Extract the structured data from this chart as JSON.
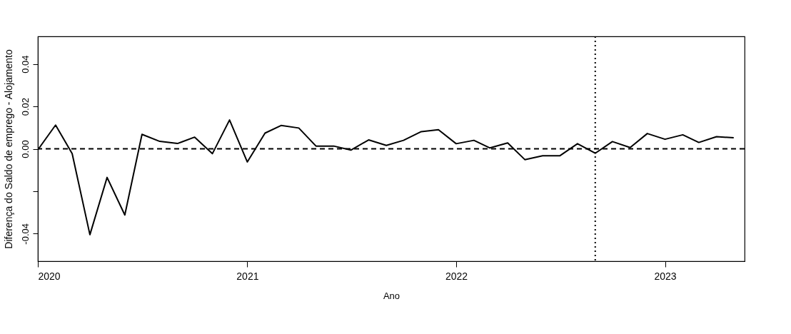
{
  "chart_data": {
    "type": "line",
    "xlabel": "Ano",
    "ylabel": "Diferença do Saldo de emprego - Alojamento",
    "x": [
      "2020-01",
      "2020-02",
      "2020-03",
      "2020-04",
      "2020-05",
      "2020-06",
      "2020-07",
      "2020-08",
      "2020-09",
      "2020-10",
      "2020-11",
      "2020-12",
      "2021-01",
      "2021-02",
      "2021-03",
      "2021-04",
      "2021-05",
      "2021-06",
      "2021-07",
      "2021-08",
      "2021-09",
      "2021-10",
      "2021-11",
      "2021-12",
      "2022-01",
      "2022-02",
      "2022-03",
      "2022-04",
      "2022-05",
      "2022-06",
      "2022-07",
      "2022-08",
      "2022-09",
      "2022-10",
      "2022-11",
      "2022-12",
      "2023-01",
      "2023-02",
      "2023-03",
      "2023-04",
      "2023-05"
    ],
    "series": [
      {
        "color": "#000000",
        "values": [
          -0.0005,
          0.0112,
          -0.0023,
          -0.0405,
          -0.0135,
          -0.0312,
          0.0068,
          0.0035,
          0.0025,
          0.0055,
          -0.0023,
          0.0136,
          -0.0062,
          0.0074,
          0.011,
          0.0098,
          0.0013,
          0.0013,
          -0.0006,
          0.0042,
          0.0016,
          0.004,
          0.0081,
          0.009,
          0.0024,
          0.004,
          0.0004,
          0.0028,
          -0.0051,
          -0.0033,
          -0.0033,
          0.0024,
          -0.0021,
          0.0034,
          0.0006,
          0.0072,
          0.0045,
          0.0066,
          0.003,
          0.0057,
          0.0052
        ]
      }
    ],
    "xlim": [
      "2020-01",
      "2023-05-20"
    ],
    "xticks": [
      "2020",
      "2021",
      "2022",
      "2023"
    ],
    "ylim": [
      -0.053,
      0.053
    ],
    "yticks": [
      {
        "value": -0.04,
        "label": "-0.04"
      },
      {
        "value": -0.02,
        "label": null
      },
      {
        "value": 0,
        "label": "0.00"
      },
      {
        "value": 0.02,
        "label": "0.02"
      },
      {
        "value": 0.04,
        "label": "0.04"
      }
    ],
    "ref_lines": [
      {
        "axis": "y",
        "value": 0,
        "line_style": "dashed",
        "color": "#000000"
      },
      {
        "axis": "x",
        "value": "2022-09",
        "line_style": "dotted",
        "color": "#000000"
      }
    ],
    "grid": false,
    "marker": "none",
    "line_style": "solid"
  }
}
